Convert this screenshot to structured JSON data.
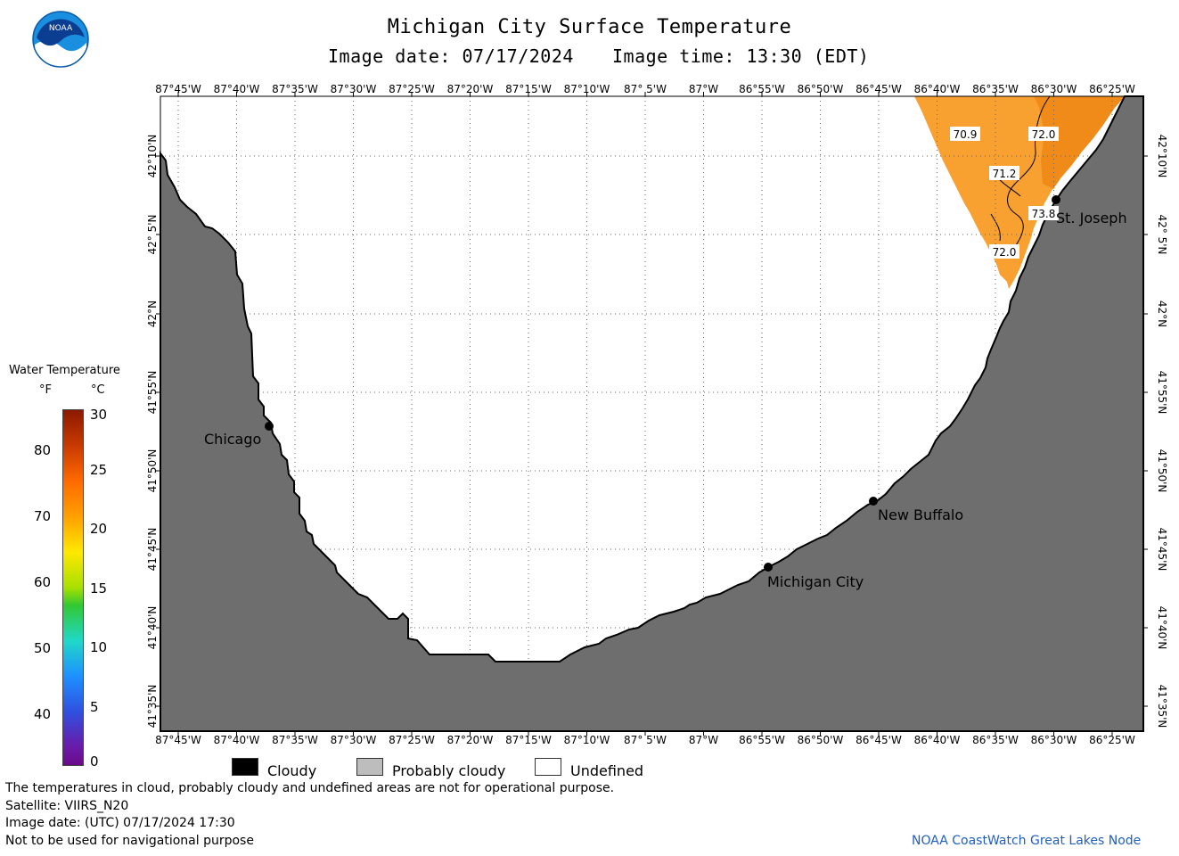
{
  "header": {
    "title": "Michigan City Surface Temperature",
    "image_date": "Image date: 07/17/2024",
    "image_time": "Image time: 13:30 (EDT)"
  },
  "logo": {
    "text": "NOAA",
    "icon": "noaa-logo"
  },
  "map": {
    "lon_labels": [
      "87°45'W",
      "87°40'W",
      "87°35'W",
      "87°30'W",
      "87°25'W",
      "87°20'W",
      "87°15'W",
      "87°10'W",
      "87° 5'W",
      "87°W",
      "86°55'W",
      "86°50'W",
      "86°45'W",
      "86°40'W",
      "86°35'W",
      "86°30'W",
      "86°25'W"
    ],
    "lat_labels": [
      "42°10'N",
      "42° 5'N",
      "42°N",
      "41°55'N",
      "41°50'N",
      "41°45'N",
      "41°40'N",
      "41°35'N"
    ],
    "cities": [
      {
        "name": "Chicago"
      },
      {
        "name": "Michigan City"
      },
      {
        "name": "New Buffalo"
      },
      {
        "name": "St. Joseph"
      }
    ],
    "isotherm_labels": [
      "70.9",
      "72.0",
      "71.2",
      "73.8",
      "72.0"
    ],
    "colors": {
      "land": "#6e6e6e",
      "water_undefined": "#ffffff",
      "warm_water": "#f8a030",
      "warm_water_dark": "#f08a18"
    }
  },
  "legend": {
    "title": "Water Temperature",
    "unit_f": "°F",
    "unit_c": "°C",
    "fahrenheit_ticks": [
      "80",
      "70",
      "60",
      "50",
      "40"
    ],
    "celsius_ticks": [
      "30",
      "25",
      "20",
      "15",
      "10",
      "5",
      "0"
    ]
  },
  "key": {
    "cloudy": "Cloudy",
    "probably_cloudy": "Probably cloudy",
    "undefined": "Undefined"
  },
  "footer": {
    "line1": "The temperatures in cloud, probably cloudy and undefined areas are not for operational purpose.",
    "line2": "Satellite: VIIRS_N20",
    "line3": "Image date: (UTC) 07/17/2024  17:30",
    "line4": "Not to be used for navigational purpose",
    "credit": "NOAA CoastWatch Great Lakes Node"
  }
}
